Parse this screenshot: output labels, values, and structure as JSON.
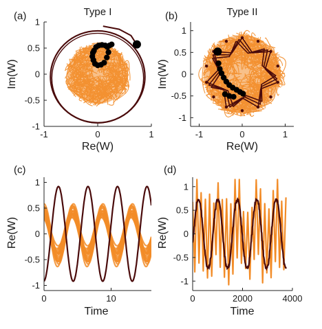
{
  "colors": {
    "orange": "#f28c28",
    "dark": "#4a0b0b",
    "marker": "#000000",
    "axis": "#222222"
  },
  "chart_data": [
    {
      "panel": "(a)",
      "title": "Type I",
      "type": "scatter",
      "xlabel": "Re(W)",
      "ylabel": "Im(W)",
      "xlim": [
        -1,
        1
      ],
      "ylim": [
        -1,
        1
      ],
      "xticks": [
        "-1",
        "0",
        "1"
      ],
      "xtick_values": [
        -1,
        0,
        1
      ],
      "yticks": [
        "1",
        "0.5",
        "0",
        "-0.5",
        "-1"
      ],
      "ytick_values": [
        1,
        0.5,
        0,
        -0.5,
        -1
      ],
      "series": [
        {
          "kind": "orange-cloud",
          "cx": 0.0,
          "cy": 0.0,
          "r": 0.62
        },
        {
          "kind": "dark-ring",
          "cx": 0.0,
          "cy": -0.05,
          "r": 0.88,
          "tail": [
            [
              0.72,
              0.58
            ],
            [
              0.62,
              0.74
            ],
            [
              0.4,
              0.86
            ],
            [
              0.1,
              0.92
            ]
          ]
        },
        {
          "kind": "black-dots",
          "points": [
            [
              -0.07,
              0.45
            ],
            [
              -0.03,
              0.52
            ],
            [
              0.02,
              0.55
            ],
            [
              0.08,
              0.56
            ],
            [
              0.14,
              0.55
            ],
            [
              0.18,
              0.52
            ],
            [
              0.22,
              0.55
            ],
            [
              0.26,
              0.57
            ],
            [
              0.2,
              0.42
            ],
            [
              0.17,
              0.32
            ],
            [
              0.12,
              0.22
            ],
            [
              0.06,
              0.18
            ],
            [
              0.0,
              0.17
            ],
            [
              -0.05,
              0.2
            ],
            [
              -0.08,
              0.27
            ],
            [
              -0.1,
              0.34
            ],
            [
              -0.09,
              0.41
            ]
          ]
        },
        {
          "kind": "big-dot",
          "points": [
            [
              0.73,
              0.57
            ]
          ]
        }
      ]
    },
    {
      "panel": "(b)",
      "title": "Type II",
      "type": "scatter",
      "xlabel": "Re(W)",
      "ylabel": "Im(W)",
      "xlim": [
        -1.2,
        1.2
      ],
      "ylim": [
        -1.2,
        1.2
      ],
      "xticks": [
        "-1",
        "0",
        "1"
      ],
      "xtick_values": [
        -1,
        0,
        1
      ],
      "yticks": [
        "1",
        "0.5",
        "0",
        "-0.5",
        "-1"
      ],
      "ytick_values": [
        1,
        0.5,
        0,
        -0.5,
        -1
      ],
      "series": [
        {
          "kind": "orange-cloud",
          "cx": 0.0,
          "cy": 0.0,
          "r": 0.98
        },
        {
          "kind": "dark-star",
          "cx": 0.0,
          "cy": 0.0,
          "r_outer": 0.85,
          "r_inner": 0.55,
          "points": 7
        },
        {
          "kind": "black-dots",
          "points": [
            [
              -0.55,
              0.25
            ],
            [
              -0.52,
              0.12
            ],
            [
              -0.48,
              0.02
            ],
            [
              -0.43,
              -0.08
            ],
            [
              -0.37,
              -0.17
            ],
            [
              -0.3,
              -0.25
            ],
            [
              -0.22,
              -0.31
            ],
            [
              -0.13,
              -0.36
            ],
            [
              -0.05,
              -0.41
            ],
            [
              0.02,
              -0.45
            ],
            [
              -0.4,
              -0.46
            ],
            [
              -0.3,
              -0.5
            ],
            [
              -0.2,
              -0.52
            ]
          ]
        },
        {
          "kind": "big-dot",
          "points": [
            [
              -0.57,
              0.52
            ]
          ]
        }
      ]
    },
    {
      "panel": "(c)",
      "title": "",
      "type": "line",
      "xlabel": "Time",
      "ylabel": "Re(W)",
      "xlim": [
        0,
        16
      ],
      "ylim": [
        -1.1,
        1.1
      ],
      "xticks": [
        "0",
        "10"
      ],
      "xtick_values": [
        0,
        10
      ],
      "yticks": [
        "1",
        "0.5",
        "0",
        "-0.5",
        "-1"
      ],
      "ytick_values": [
        1,
        0.5,
        0,
        -0.5,
        -1
      ],
      "series": [
        {
          "kind": "orange-band",
          "period": 4.4,
          "amplitude": 0.45,
          "phase": 1.8,
          "spread": 0.2
        },
        {
          "kind": "dark-line",
          "period": 4.4,
          "amplitude": 0.92,
          "phase": -1.5
        }
      ]
    },
    {
      "panel": "(d)",
      "title": "",
      "type": "line",
      "xlabel": "Time",
      "ylabel": "Re(W)",
      "xlim": [
        0,
        4000
      ],
      "ylim": [
        -1.2,
        1.2
      ],
      "xticks": [
        "0",
        "2000",
        "4000"
      ],
      "xtick_values": [
        0,
        2000,
        4000
      ],
      "yticks": [
        "1",
        "0.5",
        "0",
        "-0.5",
        "-1"
      ],
      "ytick_values": [
        1,
        0.5,
        0,
        -0.5,
        -1
      ],
      "series": [
        {
          "kind": "orange-zigzag",
          "period": 170,
          "amplitude": 1.0
        },
        {
          "kind": "dark-line-steps",
          "period": 780,
          "amplitude": 0.75,
          "phase": -0.3
        }
      ]
    }
  ]
}
